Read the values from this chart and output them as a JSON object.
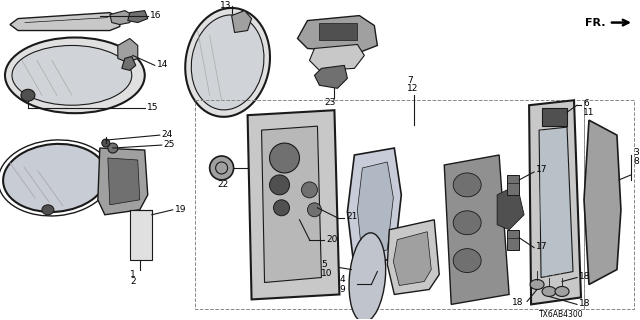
{
  "bg_color": "#ffffff",
  "figsize": [
    6.4,
    3.2
  ],
  "dpi": 100,
  "diagram_id": "TX6AB4300",
  "fr_label": "FR.",
  "line_color": "#1a1a1a",
  "gray1": "#c8c8c8",
  "gray2": "#a0a0a0",
  "gray3": "#707070",
  "gray4": "#505050",
  "gray5": "#e0e0e0",
  "box_color": "#aaaaaa"
}
